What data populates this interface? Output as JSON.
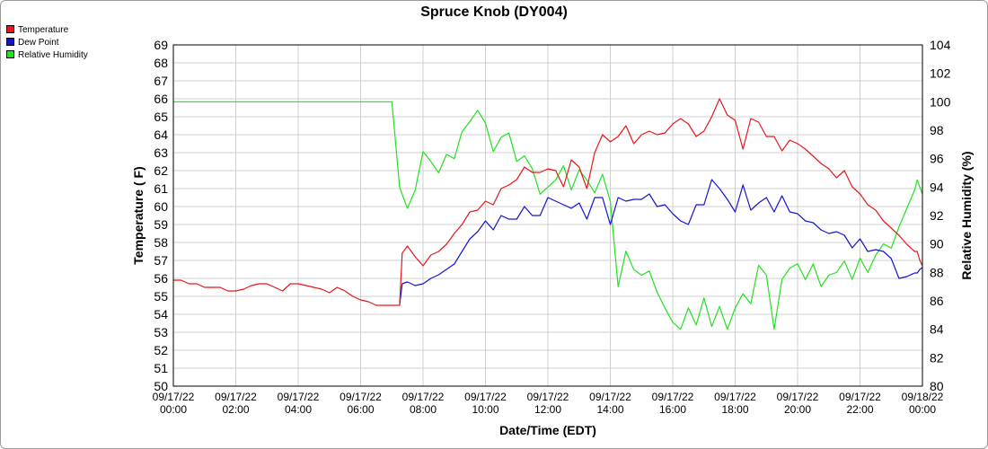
{
  "chart_data": {
    "type": "line",
    "title": "Spruce Knob (DY004)",
    "xlabel": "Date/Time (EDT)",
    "ylabel_left": "Temperature ( F)",
    "ylabel_right": "Relative Humidity (%)",
    "ylim_left": [
      50,
      69
    ],
    "ylim_right": [
      80,
      104
    ],
    "xlim": [
      "09/17/22 00:00",
      "09/18/22 00:00"
    ],
    "grid": true,
    "legend_position": "top-left",
    "x_ticks": [
      {
        "date": "09/17/22",
        "time": "00:00"
      },
      {
        "date": "09/17/22",
        "time": "02:00"
      },
      {
        "date": "09/17/22",
        "time": "04:00"
      },
      {
        "date": "09/17/22",
        "time": "06:00"
      },
      {
        "date": "09/17/22",
        "time": "08:00"
      },
      {
        "date": "09/17/22",
        "time": "10:00"
      },
      {
        "date": "09/17/22",
        "time": "12:00"
      },
      {
        "date": "09/17/22",
        "time": "14:00"
      },
      {
        "date": "09/17/22",
        "time": "16:00"
      },
      {
        "date": "09/17/22",
        "time": "18:00"
      },
      {
        "date": "09/17/22",
        "time": "20:00"
      },
      {
        "date": "09/17/22",
        "time": "22:00"
      },
      {
        "date": "09/18/22",
        "time": "00:00"
      }
    ],
    "y_ticks_left": [
      "50",
      "51",
      "52",
      "53",
      "54",
      "55",
      "56",
      "57",
      "58",
      "59",
      "60",
      "61",
      "62",
      "63",
      "64",
      "65",
      "66",
      "67",
      "68",
      "69"
    ],
    "y_ticks_right": [
      "80",
      "82",
      "84",
      "86",
      "88",
      "90",
      "92",
      "94",
      "96",
      "98",
      "100",
      "102",
      "104"
    ],
    "series": [
      {
        "name": "Temperature",
        "color": "#e8161b",
        "axis": "left",
        "points": [
          [
            "09/17/22 00:00",
            55.9
          ],
          [
            "09/17/22 00:15",
            55.9
          ],
          [
            "09/17/22 00:30",
            55.7
          ],
          [
            "09/17/22 00:45",
            55.7
          ],
          [
            "09/17/22 01:00",
            55.5
          ],
          [
            "09/17/22 01:15",
            55.5
          ],
          [
            "09/17/22 01:30",
            55.5
          ],
          [
            "09/17/22 01:45",
            55.3
          ],
          [
            "09/17/22 02:00",
            55.3
          ],
          [
            "09/17/22 02:15",
            55.4
          ],
          [
            "09/17/22 02:30",
            55.6
          ],
          [
            "09/17/22 02:45",
            55.7
          ],
          [
            "09/17/22 03:00",
            55.7
          ],
          [
            "09/17/22 03:15",
            55.5
          ],
          [
            "09/17/22 03:30",
            55.3
          ],
          [
            "09/17/22 03:45",
            55.7
          ],
          [
            "09/17/22 04:00",
            55.7
          ],
          [
            "09/17/22 04:30",
            55.5
          ],
          [
            "09/17/22 04:45",
            55.4
          ],
          [
            "09/17/22 05:00",
            55.2
          ],
          [
            "09/17/22 05:15",
            55.5
          ],
          [
            "09/17/22 05:30",
            55.3
          ],
          [
            "09/17/22 05:45",
            55.0
          ],
          [
            "09/17/22 06:00",
            54.8
          ],
          [
            "09/17/22 06:15",
            54.7
          ],
          [
            "09/17/22 06:30",
            54.5
          ],
          [
            "09/17/22 07:00",
            54.5
          ],
          [
            "09/17/22 07:15",
            54.5
          ],
          [
            "09/17/22 07:20",
            57.4
          ],
          [
            "09/17/22 07:30",
            57.8
          ],
          [
            "09/17/22 07:45",
            57.2
          ],
          [
            "09/17/22 08:00",
            56.7
          ],
          [
            "09/17/22 08:15",
            57.3
          ],
          [
            "09/17/22 08:30",
            57.5
          ],
          [
            "09/17/22 08:45",
            57.9
          ],
          [
            "09/17/22 09:00",
            58.5
          ],
          [
            "09/17/22 09:15",
            59.0
          ],
          [
            "09/17/22 09:30",
            59.7
          ],
          [
            "09/17/22 09:45",
            59.8
          ],
          [
            "09/17/22 10:00",
            60.3
          ],
          [
            "09/17/22 10:15",
            60.1
          ],
          [
            "09/17/22 10:30",
            61.0
          ],
          [
            "09/17/22 10:45",
            61.2
          ],
          [
            "09/17/22 11:00",
            61.5
          ],
          [
            "09/17/22 11:15",
            62.2
          ],
          [
            "09/17/22 11:30",
            61.9
          ],
          [
            "09/17/22 11:45",
            61.9
          ],
          [
            "09/17/22 12:00",
            62.1
          ],
          [
            "09/17/22 12:15",
            62.0
          ],
          [
            "09/17/22 12:30",
            61.1
          ],
          [
            "09/17/22 12:45",
            62.6
          ],
          [
            "09/17/22 13:00",
            62.2
          ],
          [
            "09/17/22 13:15",
            61.0
          ],
          [
            "09/17/22 13:30",
            63.0
          ],
          [
            "09/17/22 13:45",
            64.0
          ],
          [
            "09/17/22 14:00",
            63.6
          ],
          [
            "09/17/22 14:15",
            63.9
          ],
          [
            "09/17/22 14:30",
            64.5
          ],
          [
            "09/17/22 14:45",
            63.5
          ],
          [
            "09/17/22 15:00",
            64.0
          ],
          [
            "09/17/22 15:15",
            64.2
          ],
          [
            "09/17/22 15:30",
            64.0
          ],
          [
            "09/17/22 15:45",
            64.1
          ],
          [
            "09/17/22 16:00",
            64.6
          ],
          [
            "09/17/22 16:15",
            64.9
          ],
          [
            "09/17/22 16:30",
            64.6
          ],
          [
            "09/17/22 16:45",
            63.9
          ],
          [
            "09/17/22 17:00",
            64.2
          ],
          [
            "09/17/22 17:15",
            65.0
          ],
          [
            "09/17/22 17:30",
            66.0
          ],
          [
            "09/17/22 17:45",
            65.1
          ],
          [
            "09/17/22 18:00",
            64.8
          ],
          [
            "09/17/22 18:15",
            63.2
          ],
          [
            "09/17/22 18:30",
            64.9
          ],
          [
            "09/17/22 18:45",
            64.7
          ],
          [
            "09/17/22 19:00",
            63.9
          ],
          [
            "09/17/22 19:15",
            63.9
          ],
          [
            "09/17/22 19:30",
            63.1
          ],
          [
            "09/17/22 19:45",
            63.7
          ],
          [
            "09/17/22 20:00",
            63.5
          ],
          [
            "09/17/22 20:15",
            63.2
          ],
          [
            "09/17/22 20:30",
            62.8
          ],
          [
            "09/17/22 20:45",
            62.4
          ],
          [
            "09/17/22 21:00",
            62.1
          ],
          [
            "09/17/22 21:15",
            61.6
          ],
          [
            "09/17/22 21:30",
            62.0
          ],
          [
            "09/17/22 21:45",
            61.1
          ],
          [
            "09/17/22 22:00",
            60.7
          ],
          [
            "09/17/22 22:15",
            60.1
          ],
          [
            "09/17/22 22:30",
            59.8
          ],
          [
            "09/17/22 22:45",
            59.2
          ],
          [
            "09/17/22 23:00",
            58.8
          ],
          [
            "09/17/22 23:15",
            58.4
          ],
          [
            "09/17/22 23:30",
            57.9
          ],
          [
            "09/17/22 23:45",
            57.5
          ],
          [
            "09/17/22 23:50",
            57.5
          ],
          [
            "09/17/22 23:55",
            57.0
          ],
          [
            "09/18/22 00:00",
            56.7
          ]
        ]
      },
      {
        "name": "Dew Point",
        "color": "#1414d2",
        "axis": "left",
        "points": [
          [
            "09/17/22 07:15",
            54.5
          ],
          [
            "09/17/22 07:20",
            55.7
          ],
          [
            "09/17/22 07:30",
            55.8
          ],
          [
            "09/17/22 07:45",
            55.6
          ],
          [
            "09/17/22 08:00",
            55.7
          ],
          [
            "09/17/22 08:15",
            56.0
          ],
          [
            "09/17/22 08:30",
            56.2
          ],
          [
            "09/17/22 08:45",
            56.5
          ],
          [
            "09/17/22 09:00",
            56.8
          ],
          [
            "09/17/22 09:15",
            57.5
          ],
          [
            "09/17/22 09:30",
            58.2
          ],
          [
            "09/17/22 09:45",
            58.6
          ],
          [
            "09/17/22 10:00",
            59.2
          ],
          [
            "09/17/22 10:15",
            58.7
          ],
          [
            "09/17/22 10:30",
            59.5
          ],
          [
            "09/17/22 10:45",
            59.3
          ],
          [
            "09/17/22 11:00",
            59.3
          ],
          [
            "09/17/22 11:15",
            60.0
          ],
          [
            "09/17/22 11:30",
            59.5
          ],
          [
            "09/17/22 11:45",
            59.5
          ],
          [
            "09/17/22 12:00",
            60.5
          ],
          [
            "09/17/22 12:15",
            60.3
          ],
          [
            "09/17/22 12:30",
            60.1
          ],
          [
            "09/17/22 12:45",
            59.9
          ],
          [
            "09/17/22 13:00",
            60.2
          ],
          [
            "09/17/22 13:15",
            59.3
          ],
          [
            "09/17/22 13:30",
            60.5
          ],
          [
            "09/17/22 13:45",
            60.5
          ],
          [
            "09/17/22 14:00",
            59.0
          ],
          [
            "09/17/22 14:15",
            60.5
          ],
          [
            "09/17/22 14:30",
            60.3
          ],
          [
            "09/17/22 14:45",
            60.4
          ],
          [
            "09/17/22 15:00",
            60.4
          ],
          [
            "09/17/22 15:15",
            60.7
          ],
          [
            "09/17/22 15:30",
            60.0
          ],
          [
            "09/17/22 15:45",
            60.1
          ],
          [
            "09/17/22 16:00",
            59.6
          ],
          [
            "09/17/22 16:15",
            59.2
          ],
          [
            "09/17/22 16:30",
            59.0
          ],
          [
            "09/17/22 16:45",
            60.1
          ],
          [
            "09/17/22 17:00",
            60.1
          ],
          [
            "09/17/22 17:15",
            61.5
          ],
          [
            "09/17/22 17:30",
            61.0
          ],
          [
            "09/17/22 17:45",
            60.4
          ],
          [
            "09/17/22 18:00",
            59.7
          ],
          [
            "09/17/22 18:15",
            61.2
          ],
          [
            "09/17/22 18:30",
            59.8
          ],
          [
            "09/17/22 18:45",
            60.2
          ],
          [
            "09/17/22 19:00",
            60.5
          ],
          [
            "09/17/22 19:15",
            59.7
          ],
          [
            "09/17/22 19:30",
            60.6
          ],
          [
            "09/17/22 19:45",
            59.7
          ],
          [
            "09/17/22 20:00",
            59.6
          ],
          [
            "09/17/22 20:15",
            59.2
          ],
          [
            "09/17/22 20:30",
            59.1
          ],
          [
            "09/17/22 20:45",
            58.7
          ],
          [
            "09/17/22 21:00",
            58.5
          ],
          [
            "09/17/22 21:15",
            58.6
          ],
          [
            "09/17/22 21:30",
            58.4
          ],
          [
            "09/17/22 21:45",
            57.7
          ],
          [
            "09/17/22 22:00",
            58.2
          ],
          [
            "09/17/22 22:15",
            57.5
          ],
          [
            "09/17/22 22:30",
            57.6
          ],
          [
            "09/17/22 22:45",
            57.5
          ],
          [
            "09/17/22 23:00",
            57.1
          ],
          [
            "09/17/22 23:15",
            56.0
          ],
          [
            "09/17/22 23:30",
            56.1
          ],
          [
            "09/17/22 23:45",
            56.3
          ],
          [
            "09/17/22 23:50",
            56.3
          ],
          [
            "09/17/22 23:55",
            56.5
          ],
          [
            "09/18/22 00:00",
            56.6
          ]
        ]
      },
      {
        "name": "Relative Humidity",
        "color": "#22e022",
        "axis": "right",
        "points": [
          [
            "09/17/22 00:00",
            100
          ],
          [
            "09/17/22 06:45",
            100
          ],
          [
            "09/17/22 07:00",
            100
          ],
          [
            "09/17/22 07:15",
            94.0
          ],
          [
            "09/17/22 07:30",
            92.5
          ],
          [
            "09/17/22 07:45",
            93.8
          ],
          [
            "09/17/22 08:00",
            96.5
          ],
          [
            "09/17/22 08:15",
            95.8
          ],
          [
            "09/17/22 08:30",
            95.0
          ],
          [
            "09/17/22 08:45",
            96.3
          ],
          [
            "09/17/22 09:00",
            96.0
          ],
          [
            "09/17/22 09:15",
            97.9
          ],
          [
            "09/17/22 09:30",
            98.6
          ],
          [
            "09/17/22 09:45",
            99.4
          ],
          [
            "09/17/22 10:00",
            98.5
          ],
          [
            "09/17/22 10:15",
            96.5
          ],
          [
            "09/17/22 10:30",
            97.5
          ],
          [
            "09/17/22 10:45",
            97.8
          ],
          [
            "09/17/22 11:00",
            95.8
          ],
          [
            "09/17/22 11:15",
            96.2
          ],
          [
            "09/17/22 11:30",
            95.3
          ],
          [
            "09/17/22 11:45",
            93.5
          ],
          [
            "09/17/22 12:00",
            94.0
          ],
          [
            "09/17/22 12:15",
            94.5
          ],
          [
            "09/17/22 12:30",
            95.5
          ],
          [
            "09/17/22 12:45",
            93.8
          ],
          [
            "09/17/22 13:00",
            95.2
          ],
          [
            "09/17/22 13:15",
            94.5
          ],
          [
            "09/17/22 13:30",
            93.6
          ],
          [
            "09/17/22 13:45",
            94.9
          ],
          [
            "09/17/22 14:00",
            93.0
          ],
          [
            "09/17/22 14:15",
            87.0
          ],
          [
            "09/17/22 14:30",
            89.5
          ],
          [
            "09/17/22 14:45",
            88.2
          ],
          [
            "09/17/22 15:00",
            87.8
          ],
          [
            "09/17/22 15:15",
            88.1
          ],
          [
            "09/17/22 15:30",
            86.6
          ],
          [
            "09/17/22 15:45",
            85.5
          ],
          [
            "09/17/22 16:00",
            84.5
          ],
          [
            "09/17/22 16:15",
            84.0
          ],
          [
            "09/17/22 16:30",
            85.5
          ],
          [
            "09/17/22 16:45",
            84.3
          ],
          [
            "09/17/22 17:00",
            86.2
          ],
          [
            "09/17/22 17:15",
            84.2
          ],
          [
            "09/17/22 17:30",
            85.6
          ],
          [
            "09/17/22 17:45",
            84.0
          ],
          [
            "09/17/22 18:00",
            85.5
          ],
          [
            "09/17/22 18:15",
            86.5
          ],
          [
            "09/17/22 18:30",
            85.8
          ],
          [
            "09/17/22 18:45",
            88.5
          ],
          [
            "09/17/22 19:00",
            87.8
          ],
          [
            "09/17/22 19:15",
            84.0
          ],
          [
            "09/17/22 19:30",
            87.5
          ],
          [
            "09/17/22 19:45",
            88.3
          ],
          [
            "09/17/22 20:00",
            88.6
          ],
          [
            "09/17/22 20:15",
            87.5
          ],
          [
            "09/17/22 20:30",
            88.6
          ],
          [
            "09/17/22 20:45",
            87.0
          ],
          [
            "09/17/22 21:00",
            87.8
          ],
          [
            "09/17/22 21:15",
            88.0
          ],
          [
            "09/17/22 21:30",
            88.8
          ],
          [
            "09/17/22 21:45",
            87.5
          ],
          [
            "09/17/22 22:00",
            89.0
          ],
          [
            "09/17/22 22:15",
            88.0
          ],
          [
            "09/17/22 22:30",
            89.2
          ],
          [
            "09/17/22 22:45",
            90.0
          ],
          [
            "09/17/22 23:00",
            89.7
          ],
          [
            "09/17/22 23:15",
            91.2
          ],
          [
            "09/17/22 23:30",
            92.5
          ],
          [
            "09/17/22 23:45",
            93.8
          ],
          [
            "09/17/22 23:50",
            94.5
          ],
          [
            "09/17/22 23:55",
            94.0
          ],
          [
            "09/18/22 00:00",
            93.5
          ]
        ]
      }
    ]
  }
}
